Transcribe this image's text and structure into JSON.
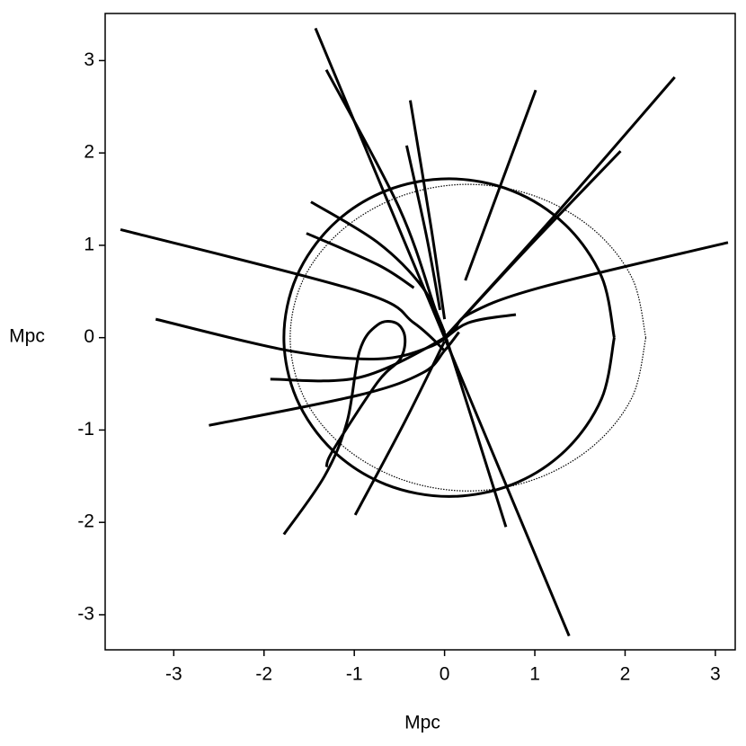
{
  "chart_data": {
    "type": "line",
    "xlabel": "Mpc",
    "ylabel": "Mpc",
    "xlim": [
      -3.76,
      3.22
    ],
    "ylim": [
      -3.38,
      3.51
    ],
    "xticks": [
      -3,
      -2,
      -1,
      0,
      1,
      2,
      3
    ],
    "yticks": [
      -3,
      -2,
      -1,
      0,
      1,
      2,
      3
    ],
    "series": [
      {
        "color": "#000000",
        "x": [
          -1.43,
          0,
          1.38
        ],
        "values": [
          3.35,
          0,
          -3.23
        ]
      },
      {
        "color": "#000000",
        "x": [
          -1.31,
          -0.5,
          -0.1,
          0.05,
          0.68
        ],
        "values": [
          2.9,
          1.4,
          0.3,
          -0.1,
          -2.05
        ]
      },
      {
        "color": "#000000",
        "x": [
          -0.38,
          -0.15,
          0.0
        ],
        "values": [
          2.57,
          1.2,
          0.2
        ]
      },
      {
        "color": "#000000",
        "x": [
          -0.42,
          -0.2,
          -0.05
        ],
        "values": [
          2.08,
          1.1,
          0.3
        ]
      },
      {
        "color": "#000000",
        "x": [
          1.01,
          0.23
        ],
        "values": [
          2.68,
          0.62
        ]
      },
      {
        "color": "#000000",
        "x": [
          2.55,
          1.2,
          0
        ],
        "values": [
          2.82,
          1.3,
          0
        ]
      },
      {
        "color": "#000000",
        "x": [
          1.95,
          0.9,
          0
        ],
        "values": [
          2.02,
          0.95,
          0
        ]
      },
      {
        "color": "#000000",
        "x": [
          3.14,
          1.05,
          0.26,
          0,
          -0.94,
          -1.93
        ],
        "values": [
          1.03,
          0.54,
          0.25,
          0,
          -0.43,
          -0.45
        ]
      },
      {
        "color": "#000000",
        "x": [
          -3.59,
          -0.94,
          -0.34,
          0
        ],
        "values": [
          1.17,
          0.5,
          0.16,
          -0.14
        ]
      },
      {
        "color": "#000000",
        "x": [
          -3.2,
          -1.73,
          -0.74,
          -0.14,
          0.26,
          0.79
        ],
        "values": [
          0.2,
          -0.14,
          -0.23,
          -0.09,
          0.16,
          0.25
        ]
      },
      {
        "color": "#000000",
        "x": [
          -2.61,
          -0.94,
          -0.24,
          0,
          0.16
        ],
        "values": [
          -0.95,
          -0.62,
          -0.38,
          -0.14,
          0.06
        ]
      },
      {
        "color": "#000000",
        "x": [
          -1.78,
          -1.33,
          -1.08,
          -0.94,
          -0.74,
          -0.54,
          -0.44,
          -0.49,
          -0.74,
          -1.23,
          -1.31
        ],
        "values": [
          -2.13,
          -1.5,
          -0.91,
          -0.14,
          0.14,
          0.16,
          0.01,
          -0.23,
          -0.48,
          -1.21,
          -1.4
        ]
      },
      {
        "color": "#000000",
        "x": [
          -1.48,
          -0.74,
          -0.24,
          0
        ],
        "values": [
          1.47,
          1.03,
          0.54,
          0.06
        ]
      },
      {
        "color": "#000000",
        "x": [
          -1.53,
          -0.74,
          -0.34
        ],
        "values": [
          1.13,
          0.79,
          0.54
        ]
      },
      {
        "color": "#000000",
        "x": [
          -0.99,
          -0.44,
          0
        ],
        "values": [
          -1.92,
          -0.91,
          -0.04
        ]
      },
      {
        "color": "#000000",
        "x": [
          1.88,
          1.74,
          1.34,
          0.75,
          0.05,
          -0.65,
          -1.24,
          -1.64,
          -1.78,
          -1.64,
          -1.24,
          -0.65,
          0.05,
          0.75,
          1.34,
          1.74,
          1.88
        ],
        "values": [
          0,
          0.66,
          1.22,
          1.59,
          1.72,
          1.59,
          1.22,
          0.66,
          0,
          -0.66,
          -1.22,
          -1.59,
          -1.72,
          -1.59,
          -1.22,
          -0.66,
          0
        ]
      },
      {
        "color": "#000000",
        "line_style": "dotted",
        "x": [
          2.23,
          2.08,
          1.65,
          1.01,
          0.26,
          -0.49,
          -1.13,
          -1.56,
          -1.71,
          -1.56,
          -1.13,
          -0.49,
          0.26,
          1.01,
          1.65,
          2.08,
          2.23
        ],
        "values": [
          0,
          0.64,
          1.17,
          1.53,
          1.66,
          1.53,
          1.17,
          0.64,
          0,
          -0.64,
          -1.17,
          -1.53,
          -1.66,
          -1.53,
          -1.17,
          -0.64,
          0
        ]
      }
    ]
  }
}
